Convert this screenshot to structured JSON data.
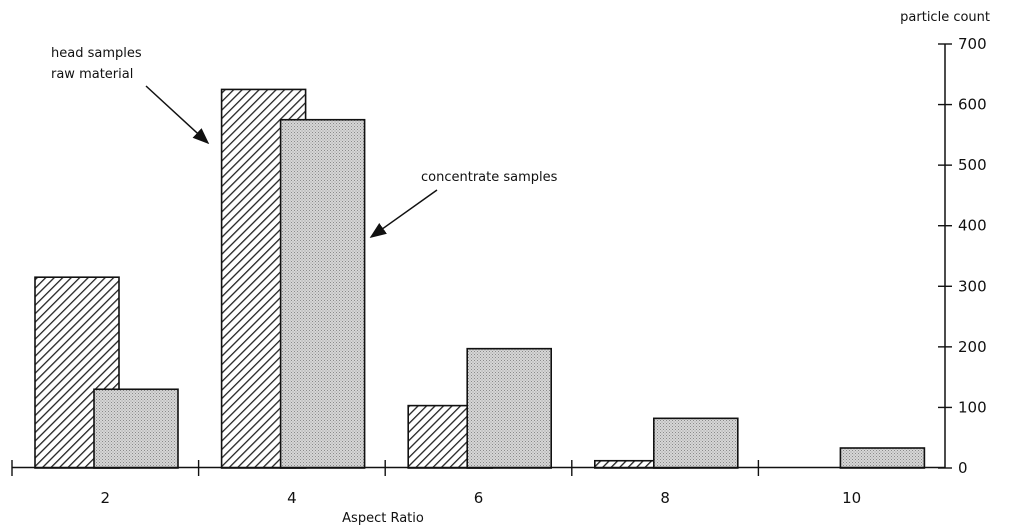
{
  "chart_data": {
    "type": "bar",
    "title": "",
    "xlabel": "Aspect Ratio",
    "ylabel": "particle count",
    "categories": [
      "2",
      "4",
      "6",
      "8",
      "10"
    ],
    "series": [
      {
        "name": "head samples raw material",
        "values": [
          315,
          625,
          103,
          12,
          0
        ]
      },
      {
        "name": "concentrate samples",
        "values": [
          130,
          575,
          197,
          82,
          33
        ]
      }
    ],
    "ylim": [
      0,
      700
    ],
    "yticks": [
      "0",
      "100",
      "200",
      "300",
      "400",
      "500",
      "600",
      "700"
    ],
    "y_axis_side": "right",
    "grid": false,
    "annotations": [
      {
        "lines": [
          "head samples",
          "raw material"
        ],
        "points_to": "head samples raw material"
      },
      {
        "lines": [
          "concentrate samples"
        ],
        "points_to": "concentrate samples"
      }
    ],
    "colors": {
      "axis": "#111111",
      "bar_edge": "#111111",
      "hatch": "#222222",
      "stipple_bg": "#d6d6d6",
      "stipple_dot": "#8a8a8a"
    }
  }
}
